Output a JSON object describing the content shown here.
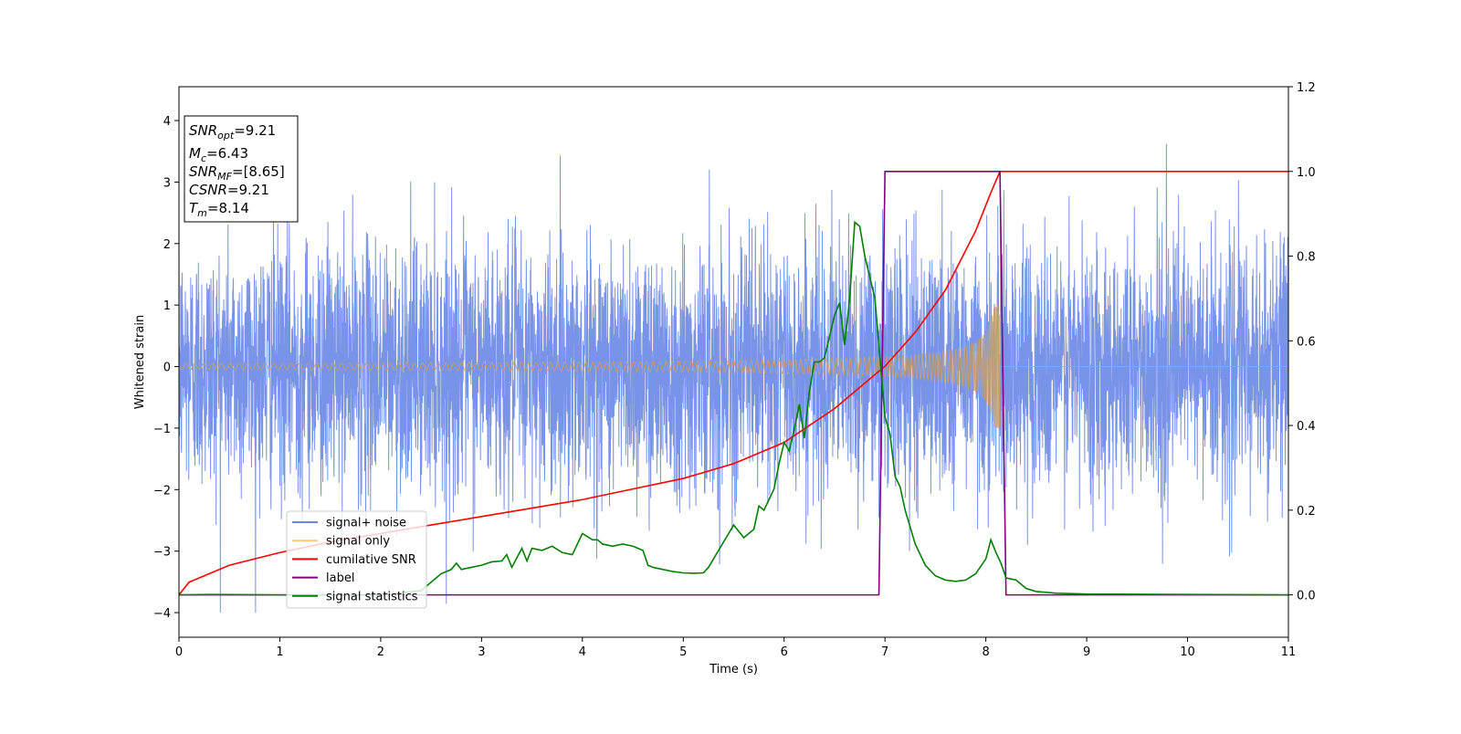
{
  "chart_data": {
    "type": "line",
    "title": "",
    "xlabel": "Time (s)",
    "ylabel": "Whitened strain",
    "y2label": "",
    "xlim": [
      0,
      11
    ],
    "ylim": [
      -4.4,
      4.55
    ],
    "y2lim": [
      -0.1,
      1.2
    ],
    "xticks": [
      "0",
      "1",
      "2",
      "3",
      "4",
      "5",
      "6",
      "7",
      "8",
      "9",
      "10",
      "11"
    ],
    "yticks": [
      "−4",
      "−3",
      "−2",
      "−1",
      "0",
      "1",
      "2",
      "3",
      "4"
    ],
    "y2ticks": [
      "0.0",
      "0.2",
      "0.4",
      "0.6",
      "0.8",
      "1.0",
      "1.2"
    ],
    "grid": false,
    "info_box": {
      "snr_opt": {
        "base": "SNR",
        "sub": "opt",
        "value": "=9.21"
      },
      "mc": {
        "base": "M",
        "sub": "c",
        "value": "=6.43"
      },
      "snr_mf": {
        "base": "SNR",
        "sub": "MF",
        "value": "=[8.65]"
      },
      "csnr": {
        "base": "CSNR",
        "value": "=9.21"
      },
      "tm": {
        "base": "T",
        "sub": "m",
        "value": "=8.14"
      }
    },
    "legend": {
      "position": "lower-left",
      "entries": [
        {
          "label": "signal+ noise",
          "color": "#6a87e6"
        },
        {
          "label": "signal only",
          "color": "#ffc882"
        },
        {
          "label": "cumilative SNR",
          "color": "#ff0000"
        },
        {
          "label": "label",
          "color": "#800080"
        },
        {
          "label": "signal statistics",
          "color": "#008000"
        }
      ]
    },
    "series": [
      {
        "name": "signal+ noise",
        "axis": "left",
        "color": "#6a87e6",
        "description_range": [
          -4.0,
          4.15
        ],
        "note": "white noise band, typical amplitude about ±2.3 over the full 0–11 s"
      },
      {
        "name": "signal only",
        "axis": "left",
        "color": "#ffc882",
        "chirp": {
          "start": 0,
          "merger": 8.14,
          "amplitude_start": 0.05,
          "amplitude_peak": 1.0
        }
      },
      {
        "name": "cumilative SNR",
        "axis": "right",
        "color": "#ff0000",
        "x": [
          0,
          0.1,
          0.5,
          1,
          1.5,
          2,
          2.5,
          3,
          3.5,
          4,
          4.5,
          5,
          5.5,
          6,
          6.5,
          7,
          7.3,
          7.6,
          7.9,
          8.05,
          8.14,
          11
        ],
        "y": [
          0.0,
          0.03,
          0.07,
          0.1,
          0.125,
          0.145,
          0.165,
          0.185,
          0.205,
          0.225,
          0.25,
          0.275,
          0.31,
          0.36,
          0.44,
          0.54,
          0.62,
          0.72,
          0.86,
          0.95,
          1.0,
          1.0
        ]
      },
      {
        "name": "label",
        "axis": "right",
        "color": "#800080",
        "x": [
          0,
          6.94,
          7.0,
          8.14,
          8.2,
          11
        ],
        "y": [
          0,
          0,
          1,
          1,
          0,
          0
        ]
      },
      {
        "name": "signal statistics",
        "axis": "right",
        "color": "#008000",
        "x": [
          0,
          0.3,
          1,
          2,
          2.4,
          2.6,
          2.7,
          2.75,
          2.8,
          2.9,
          3.0,
          3.1,
          3.2,
          3.25,
          3.3,
          3.4,
          3.45,
          3.5,
          3.6,
          3.7,
          3.8,
          3.9,
          4.0,
          4.1,
          4.15,
          4.2,
          4.3,
          4.4,
          4.5,
          4.6,
          4.65,
          4.7,
          4.8,
          4.9,
          5.0,
          5.1,
          5.2,
          5.25,
          5.3,
          5.4,
          5.5,
          5.6,
          5.7,
          5.75,
          5.8,
          5.9,
          5.95,
          6.0,
          6.05,
          6.1,
          6.15,
          6.2,
          6.25,
          6.3,
          6.35,
          6.4,
          6.5,
          6.55,
          6.6,
          6.65,
          6.7,
          6.75,
          6.8,
          6.85,
          6.9,
          6.95,
          7.0,
          7.05,
          7.1,
          7.15,
          7.2,
          7.3,
          7.4,
          7.5,
          7.6,
          7.7,
          7.8,
          7.9,
          8.0,
          8.05,
          8.1,
          8.15,
          8.2,
          8.3,
          8.4,
          8.5,
          8.7,
          9,
          10,
          11
        ],
        "y": [
          0.0,
          0.001,
          0.0,
          0.0,
          0.01,
          0.05,
          0.06,
          0.075,
          0.06,
          0.065,
          0.07,
          0.078,
          0.08,
          0.095,
          0.065,
          0.11,
          0.08,
          0.11,
          0.105,
          0.115,
          0.1,
          0.095,
          0.145,
          0.13,
          0.13,
          0.12,
          0.115,
          0.12,
          0.115,
          0.105,
          0.07,
          0.065,
          0.06,
          0.055,
          0.052,
          0.051,
          0.052,
          0.065,
          0.085,
          0.125,
          0.165,
          0.135,
          0.155,
          0.21,
          0.2,
          0.25,
          0.31,
          0.36,
          0.34,
          0.39,
          0.45,
          0.37,
          0.48,
          0.55,
          0.55,
          0.56,
          0.66,
          0.69,
          0.59,
          0.7,
          0.88,
          0.87,
          0.8,
          0.75,
          0.7,
          0.56,
          0.42,
          0.38,
          0.28,
          0.255,
          0.2,
          0.12,
          0.07,
          0.045,
          0.035,
          0.032,
          0.035,
          0.05,
          0.085,
          0.13,
          0.1,
          0.075,
          0.04,
          0.035,
          0.015,
          0.008,
          0.004,
          0.002,
          0.001,
          0.0
        ]
      }
    ]
  }
}
